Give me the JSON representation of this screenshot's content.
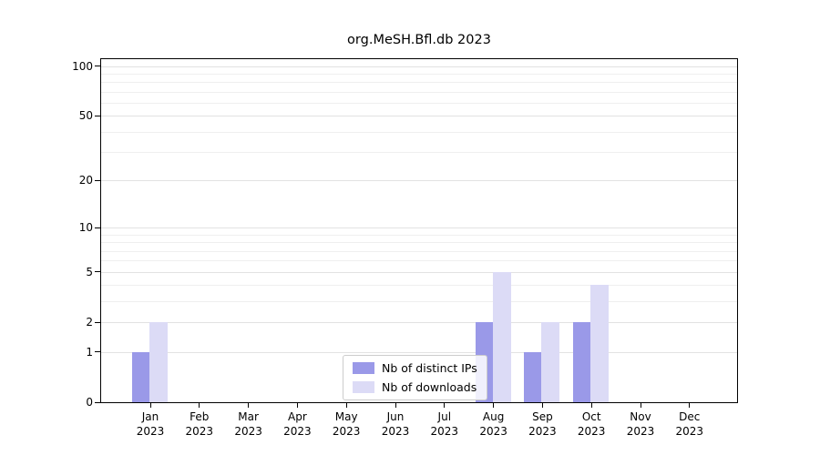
{
  "title": "org.MeSH.Bfl.db 2023",
  "chart_data": {
    "type": "bar",
    "title": "org.MeSH.Bfl.db 2023",
    "months": [
      "Jan",
      "Feb",
      "Mar",
      "Apr",
      "May",
      "Jun",
      "Jul",
      "Aug",
      "Sep",
      "Oct",
      "Nov",
      "Dec"
    ],
    "year": "2023",
    "series": [
      {
        "name": "Nb of distinct IPs",
        "color": "#9a99e8",
        "values": [
          1,
          0,
          0,
          0,
          0,
          0,
          0,
          2,
          1,
          2,
          0,
          0
        ]
      },
      {
        "name": "Nb of downloads",
        "color": "#dcdbf6",
        "values": [
          2,
          0,
          0,
          0,
          0,
          0,
          0,
          5,
          2,
          4,
          0,
          0
        ]
      }
    ],
    "y_ticks": [
      0,
      1,
      2,
      5,
      10,
      20,
      50,
      100
    ],
    "ylim": [
      0,
      110
    ],
    "y_scale": "log10(value+1)",
    "grid": "horizontal",
    "legend_position": "bottom-center-inside",
    "legend_items": [
      "Nb of distinct IPs",
      "Nb of downloads"
    ]
  }
}
